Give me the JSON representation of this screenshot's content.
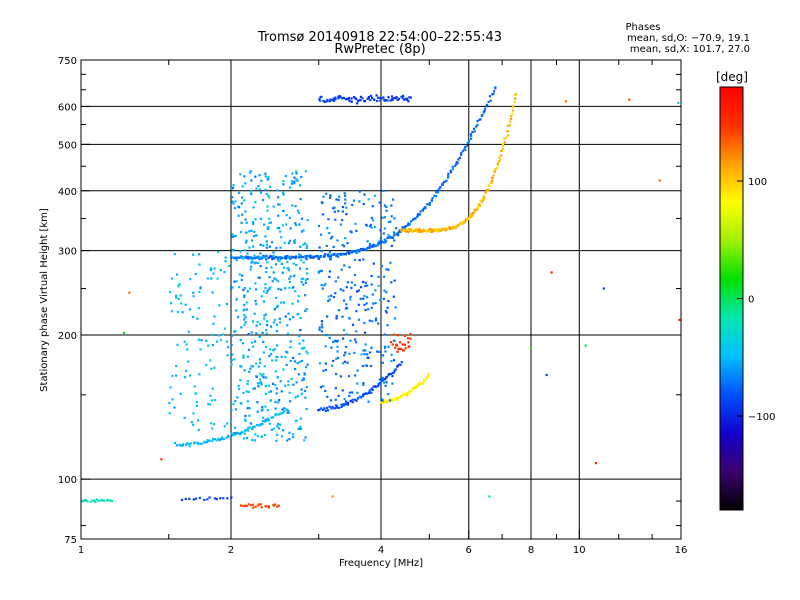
{
  "chart_data": {
    "type": "scatter",
    "title": "Tromsø 20140918 22:54:00–22:55:43",
    "subtitle": "RwPretec (8p)",
    "phases_header": "Phases",
    "phases_stats": [
      "mean, sd,O: −70.9, 19.1",
      "mean, sd,X: 101.7, 27.0"
    ],
    "xlabel": "Frequency [MHz]",
    "ylabel": "Stationary phase Virtual Height [km]",
    "x_scale": "log",
    "y_scale": "log",
    "xlim": [
      1,
      16
    ],
    "ylim": [
      75,
      750
    ],
    "x_ticks": [
      1,
      2,
      4,
      6,
      8,
      10,
      16
    ],
    "x_tick_labels": [
      "1",
      "2",
      "4",
      "6",
      "8",
      "10",
      "16"
    ],
    "x_gridlines": [
      2,
      4,
      6,
      8,
      10
    ],
    "y_ticks": [
      75,
      100,
      200,
      300,
      400,
      500,
      600,
      750
    ],
    "y_tick_labels": [
      "75",
      "100",
      "200",
      "300",
      "400",
      "500",
      "600",
      "750"
    ],
    "y_gridlines": [
      100,
      200,
      300,
      400,
      500,
      600
    ],
    "grid": true,
    "colorbar": {
      "title": "[deg]",
      "min": -180,
      "max": 180,
      "ticks": [
        100,
        0,
        -100
      ],
      "tick_labels": [
        "100",
        "0",
        "−100"
      ],
      "colormap": [
        "#000000",
        "#3a006e",
        "#1200d0",
        "#0050ff",
        "#00c0ff",
        "#00e8b0",
        "#00e000",
        "#a0f000",
        "#ffff00",
        "#ffa000",
        "#ff3000",
        "#ff0000"
      ]
    },
    "traces": [
      {
        "name": "F2 O-mode trace",
        "f1": 2.0,
        "f2": 6.8,
        "h1": 290,
        "h2": 660,
        "shape": "cusp",
        "n": 260,
        "phase": -75,
        "spread": 16
      },
      {
        "name": "F2 X-mode trace",
        "f1": 4.4,
        "f2": 7.5,
        "h1": 330,
        "h2": 640,
        "shape": "cusp",
        "n": 170,
        "phase": 105,
        "spread": 28
      },
      {
        "name": "F1 O-mode trace",
        "f1": 3.0,
        "f2": 4.4,
        "h1": 140,
        "h2": 175,
        "shape": "rise",
        "n": 70,
        "phase": -85,
        "spread": 14
      },
      {
        "name": "F1 X-mode trace",
        "f1": 4.0,
        "f2": 5.0,
        "h1": 145,
        "h2": 165,
        "shape": "rise",
        "n": 60,
        "phase": 85,
        "spread": 22
      },
      {
        "name": "lower F trace",
        "f1": 1.55,
        "f2": 2.6,
        "h1": 118,
        "h2": 140,
        "shape": "rise",
        "n": 70,
        "phase": -50,
        "spread": 15
      },
      {
        "name": "sporadic E layer",
        "f1": 1.0,
        "f2": 1.15,
        "h1": 90,
        "h2": 90,
        "shape": "flat",
        "n": 18,
        "phase": -20,
        "spread": 15
      },
      {
        "name": "E layer near 2.3 MHz",
        "f1": 2.1,
        "f2": 2.5,
        "h1": 88,
        "h2": 88,
        "shape": "flat",
        "n": 22,
        "phase": 140,
        "spread": 10
      },
      {
        "name": "E layer near 1.6 MHz",
        "f1": 1.6,
        "f2": 2.0,
        "h1": 91,
        "h2": 91,
        "shape": "flat",
        "n": 15,
        "phase": -90,
        "spread": 15
      },
      {
        "name": "multi-hop echoes near 620 km",
        "f1": 3.0,
        "f2": 4.6,
        "h1": 615,
        "h2": 630,
        "shape": "flat",
        "n": 80,
        "phase": -90,
        "spread": 14
      },
      {
        "name": "X-mode echoes near 190 km",
        "f1": 4.2,
        "f2": 4.6,
        "h1": 185,
        "h2": 200,
        "shape": "flat",
        "n": 25,
        "phase": 150,
        "spread": 15
      }
    ],
    "diffuse_regions": [
      {
        "name": "spread echoes 2.0–2.8 MHz",
        "f1": 2.0,
        "f2": 2.85,
        "h1": 120,
        "h2": 440,
        "n": 520,
        "phase": -55,
        "spread": 28
      },
      {
        "name": "spread echoes 3.0–4.3 MHz",
        "f1": 3.0,
        "f2": 4.3,
        "h1": 145,
        "h2": 400,
        "n": 300,
        "phase": -70,
        "spread": 26
      },
      {
        "name": "spread echoes 1.5–2.0 MHz",
        "f1": 1.5,
        "f2": 2.0,
        "h1": 125,
        "h2": 300,
        "n": 110,
        "phase": -45,
        "spread": 24
      }
    ],
    "scattered_points": [
      {
        "f": 1.25,
        "h": 245,
        "phase": 130
      },
      {
        "f": 1.22,
        "h": 202,
        "phase": 10
      },
      {
        "f": 11.2,
        "h": 250,
        "phase": -90
      },
      {
        "f": 14.5,
        "h": 420,
        "phase": 130
      },
      {
        "f": 15.8,
        "h": 610,
        "phase": -30
      },
      {
        "f": 10.3,
        "h": 190,
        "phase": 0
      },
      {
        "f": 8.8,
        "h": 270,
        "phase": 150
      },
      {
        "f": 9.4,
        "h": 615,
        "phase": 130
      },
      {
        "f": 12.6,
        "h": 620,
        "phase": 140
      },
      {
        "f": 6.6,
        "h": 92,
        "phase": -10
      },
      {
        "f": 10.8,
        "h": 108,
        "phase": 150
      },
      {
        "f": 8.0,
        "h": 188,
        "phase": 30
      },
      {
        "f": 15.9,
        "h": 215,
        "phase": 170
      },
      {
        "f": 1.45,
        "h": 110,
        "phase": 150
      },
      {
        "f": 3.2,
        "h": 92,
        "phase": 120
      },
      {
        "f": 8.6,
        "h": 165,
        "phase": -90
      }
    ]
  }
}
